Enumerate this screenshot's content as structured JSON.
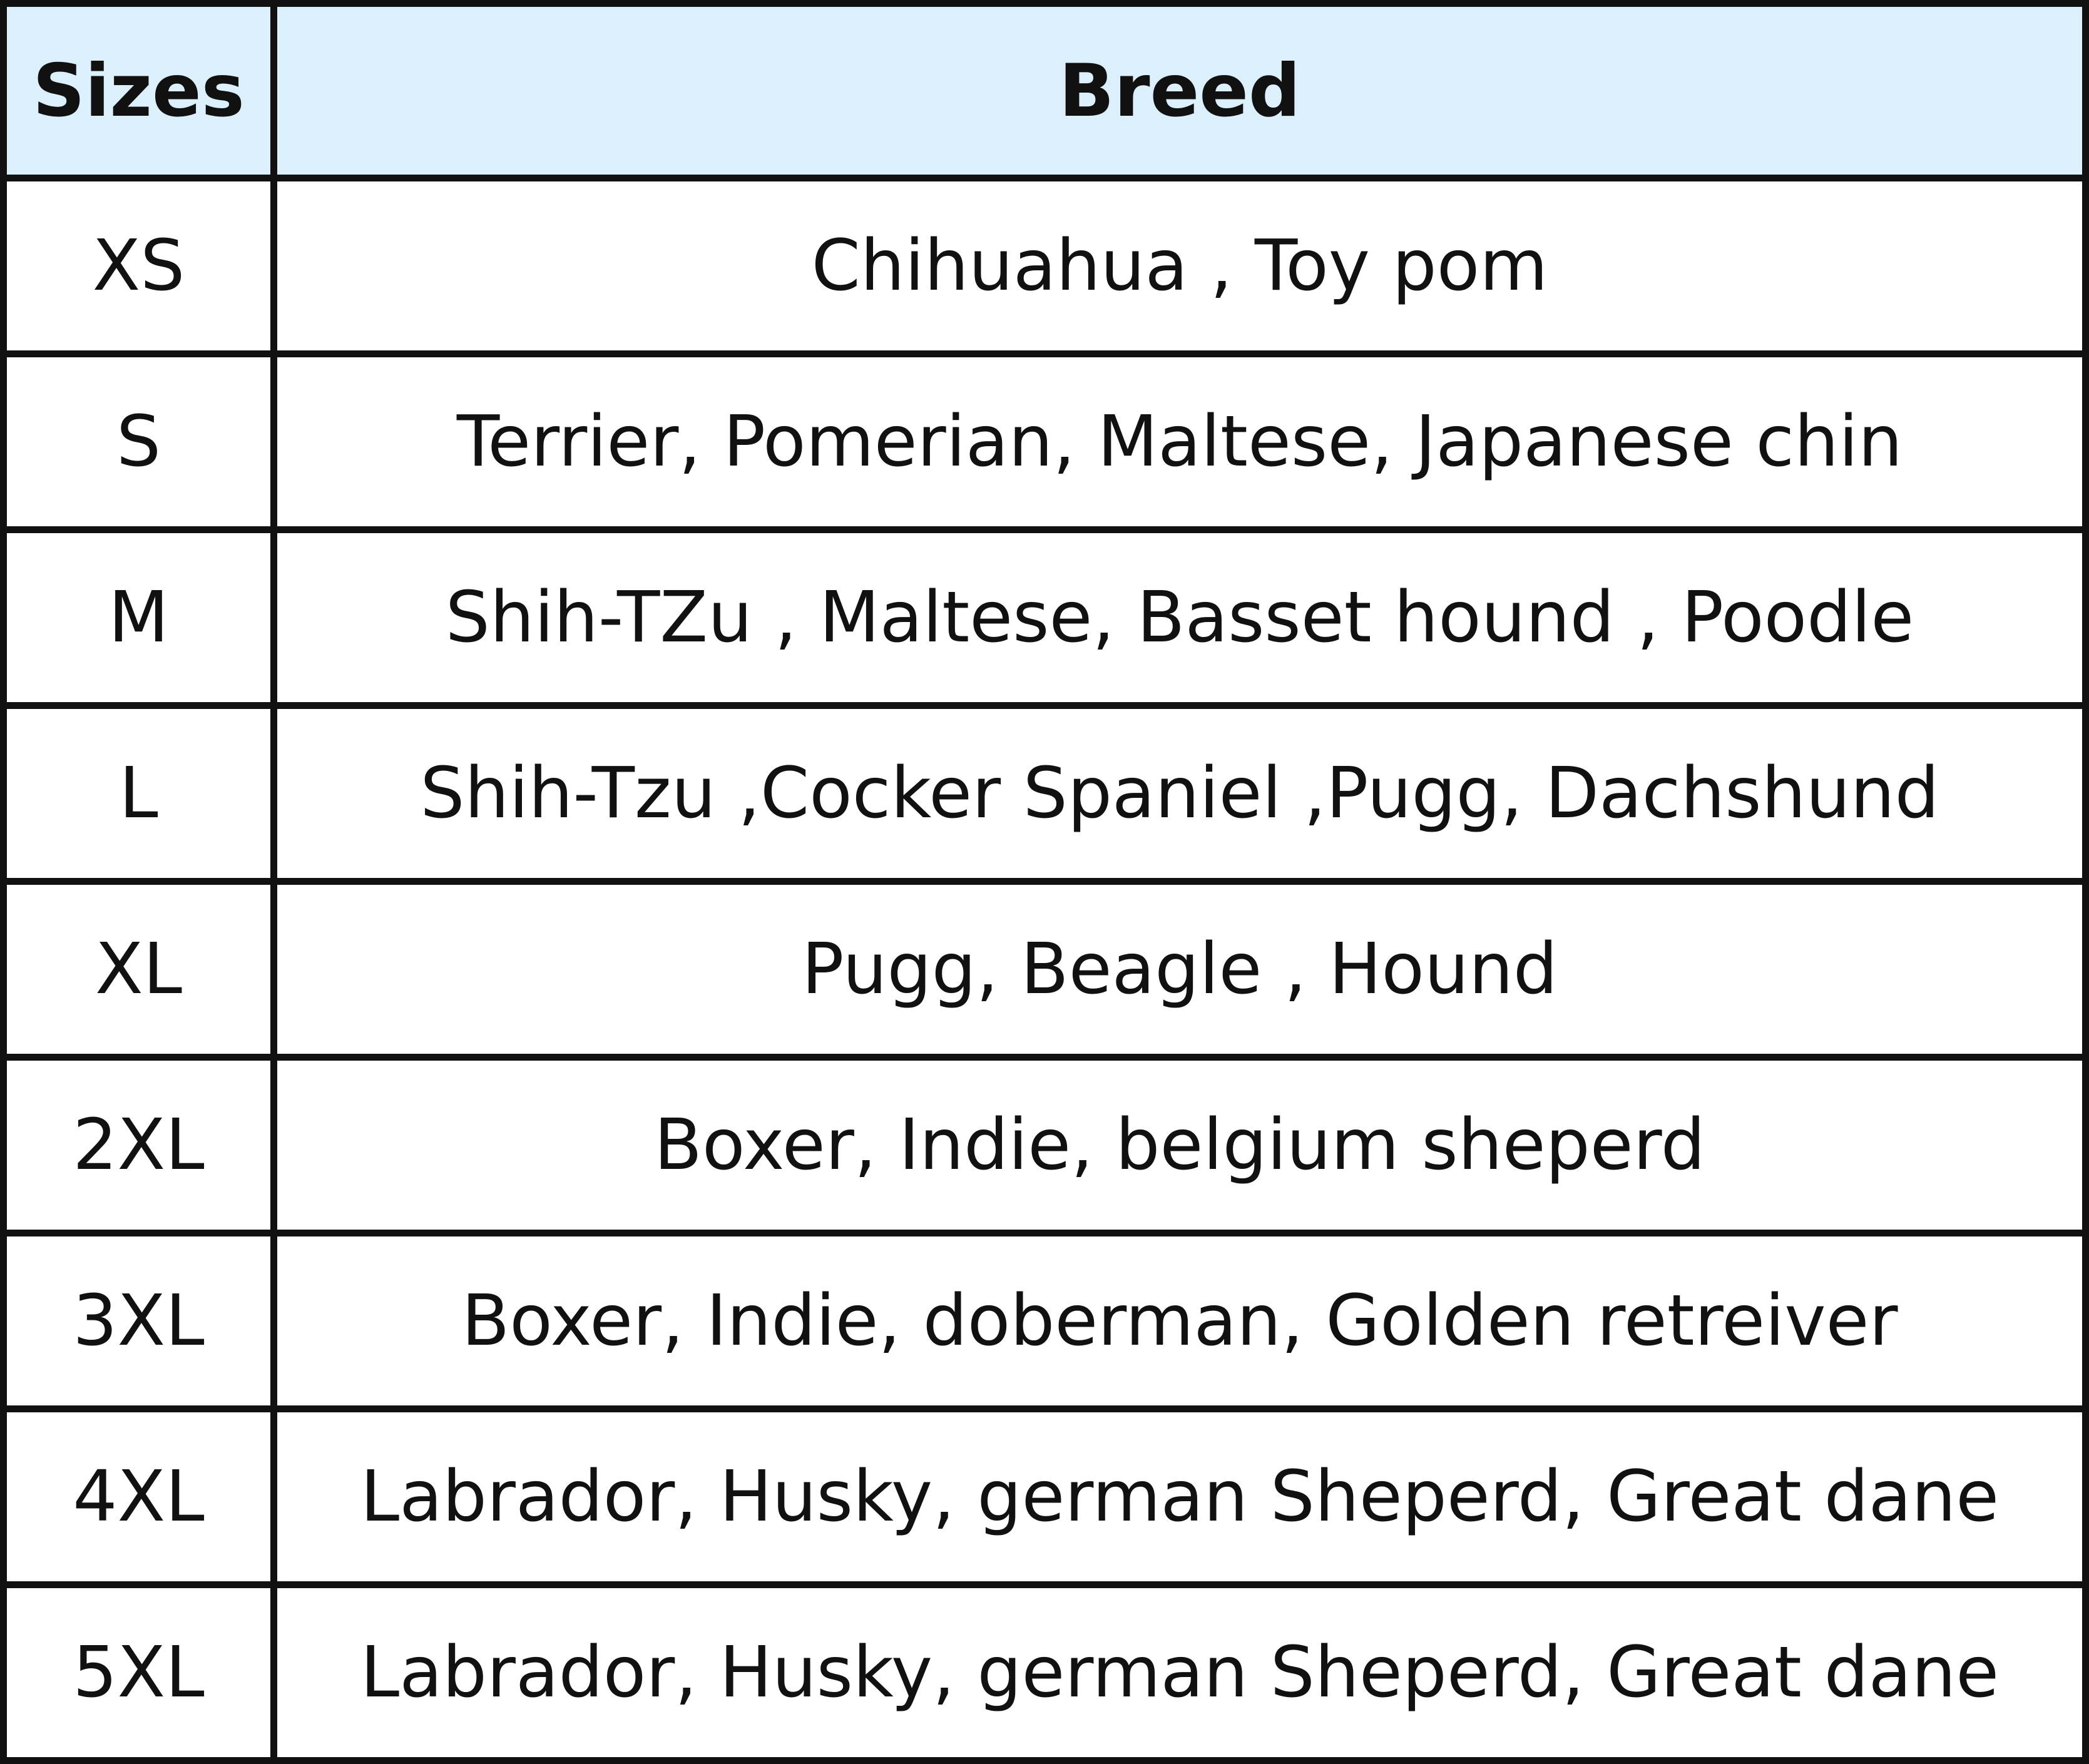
{
  "table": {
    "header": [
      "Sizes",
      "Breed"
    ],
    "rows": [
      [
        "XS",
        "Chihuahua , Toy pom"
      ],
      [
        "S",
        "Terrier, Pomerian, Maltese, Japanese chin"
      ],
      [
        "M",
        "Shih-TZu , Maltese, Basset hound , Poodle"
      ],
      [
        "L",
        "Shih-Tzu ,Cocker Spaniel ,Pugg, Dachshund"
      ],
      [
        "XL",
        "Pugg, Beagle , Hound"
      ],
      [
        "2XL",
        "Boxer, Indie, belgium sheperd"
      ],
      [
        "3XL",
        "Boxer, Indie, doberman, Golden retreiver"
      ],
      [
        "4XL",
        "Labrador, Husky, german Sheperd, Great dane"
      ],
      [
        "5XL",
        "Labrador, Husky, german Sheperd, Great dane"
      ]
    ]
  }
}
